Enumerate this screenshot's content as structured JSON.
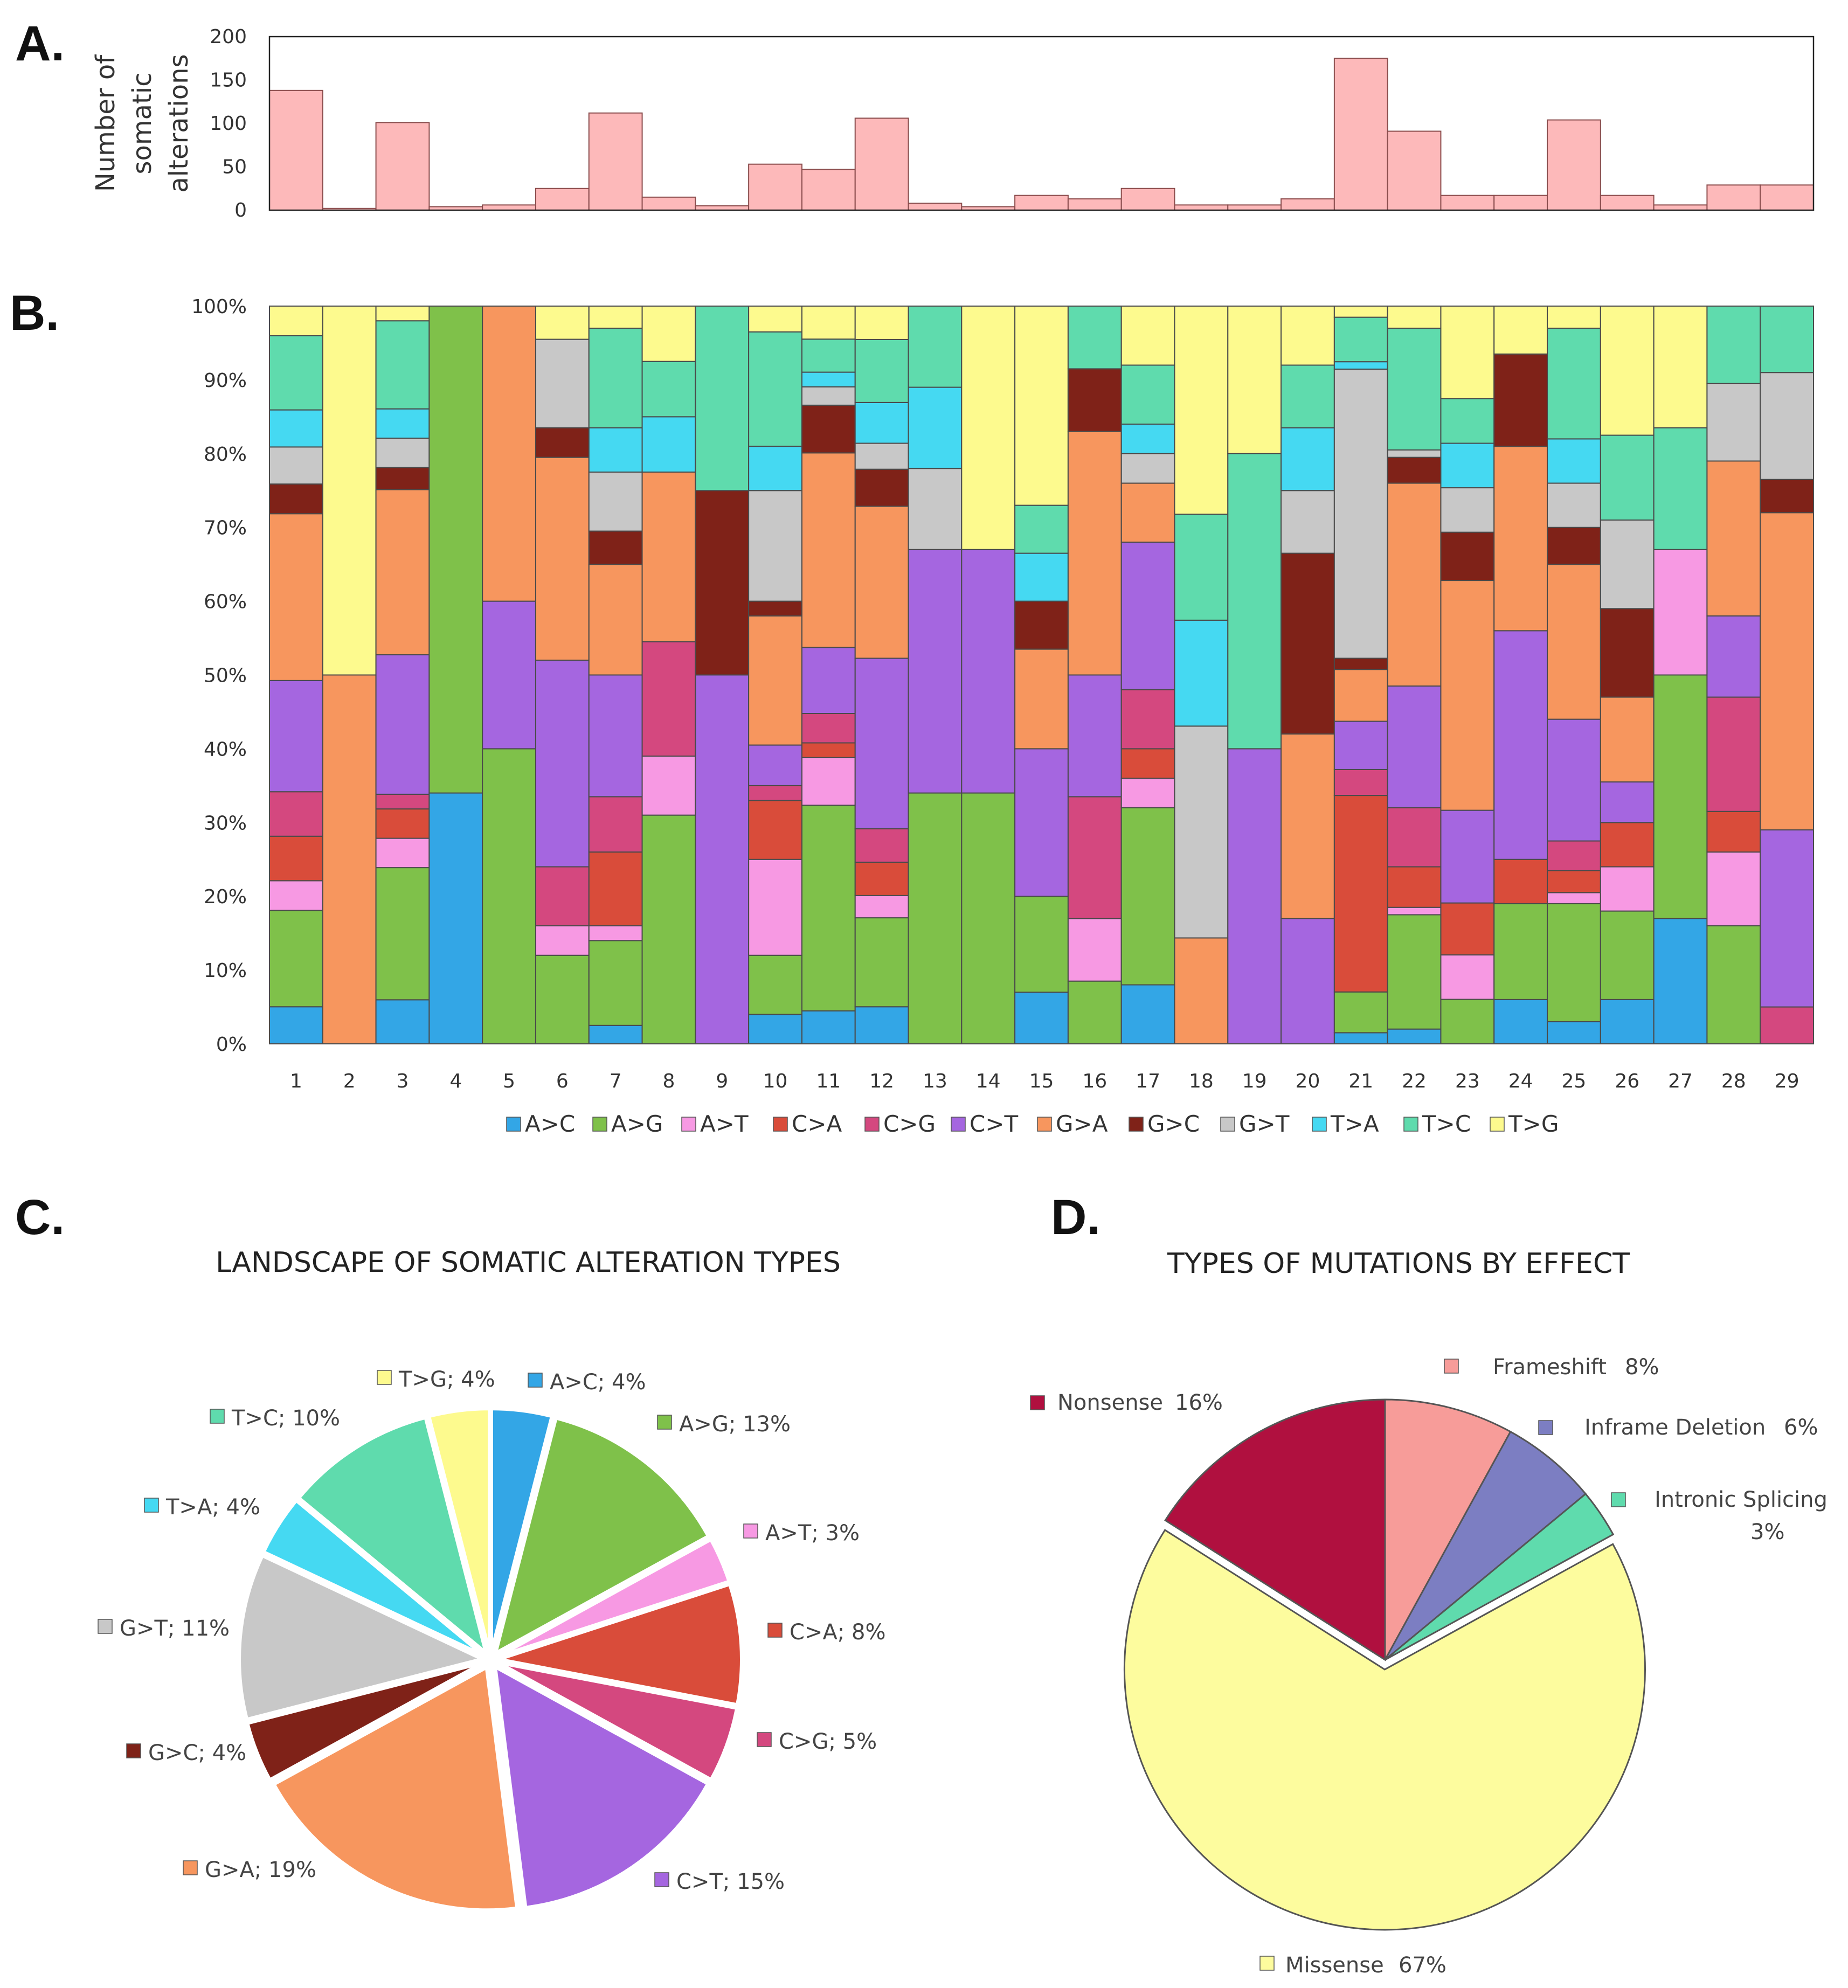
{
  "panels": {
    "a": "A.",
    "b": "B.",
    "c": "C.",
    "d": "D."
  },
  "colors": {
    "A>C": "#33a6e6",
    "A>G": "#7fc14a",
    "A>T": "#f799e3",
    "C>A": "#d94c3a",
    "C>G": "#d4487f",
    "C>T": "#a566e0",
    "G>A": "#f7965e",
    "G>C": "#7f2218",
    "G>T": "#c8c8c8",
    "T>A": "#45d9f2",
    "T>C": "#5fdbad",
    "T>G": "#fdfa8e",
    "bar": "#fdb9ba",
    "Nonsense": "#b0103f",
    "Frameshift": "#f79c99",
    "Inframe Deletion": "#7c7ec2",
    "Intronic Splicing": "#5fdbad",
    "Missense": "#fdfc9e"
  },
  "chart_data": [
    {
      "id": "A",
      "type": "bar",
      "ylabel_lines": [
        "Number of",
        "somatic",
        "alterations"
      ],
      "ylim": [
        0,
        200
      ],
      "yticks": [
        "0",
        "50",
        "100",
        "150",
        "200"
      ],
      "categories": [
        "1",
        "2",
        "3",
        "4",
        "5",
        "6",
        "7",
        "8",
        "9",
        "10",
        "11",
        "12",
        "13",
        "14",
        "15",
        "16",
        "17",
        "18",
        "19",
        "20",
        "21",
        "22",
        "23",
        "24",
        "25",
        "26",
        "27",
        "28",
        "29"
      ],
      "values": [
        138,
        2,
        101,
        4,
        6,
        25,
        112,
        15,
        5,
        53,
        47,
        106,
        8,
        4,
        17,
        13,
        25,
        6,
        6,
        13,
        175,
        91,
        17,
        17,
        104,
        17,
        6,
        29,
        29
      ]
    },
    {
      "id": "B",
      "type": "bar",
      "stacked": true,
      "ylim": [
        0,
        100
      ],
      "yticks": [
        "0%",
        "10%",
        "20%",
        "30%",
        "40%",
        "50%",
        "60%",
        "70%",
        "80%",
        "90%",
        "100%"
      ],
      "categories": [
        "1",
        "2",
        "3",
        "4",
        "5",
        "6",
        "7",
        "8",
        "9",
        "10",
        "11",
        "12",
        "13",
        "14",
        "15",
        "16",
        "17",
        "18",
        "19",
        "20",
        "21",
        "22",
        "23",
        "24",
        "25",
        "26",
        "27",
        "28",
        "29"
      ],
      "legend": [
        "A>C",
        "A>G",
        "A>T",
        "C>A",
        "C>G",
        "C>T",
        "G>A",
        "G>C",
        "G>T",
        "T>A",
        "T>C",
        "T>G"
      ],
      "series": [
        {
          "name": "A>C",
          "values": [
            5,
            0,
            6,
            34,
            0,
            0,
            2.5,
            0,
            0,
            4,
            4.5,
            5,
            0,
            0,
            7,
            0,
            8,
            0,
            0,
            0,
            1.5,
            2,
            0,
            6,
            3,
            6,
            17,
            0,
            0
          ]
        },
        {
          "name": "A>G",
          "values": [
            13,
            0,
            18,
            66,
            40,
            12,
            11.5,
            31,
            0,
            8,
            28,
            12,
            34,
            34,
            13,
            8.5,
            24,
            0,
            0,
            0,
            5.5,
            15.5,
            6,
            13,
            16,
            12,
            33,
            16,
            0
          ]
        },
        {
          "name": "A>T",
          "values": [
            4,
            0,
            4,
            0,
            0,
            4,
            2,
            8,
            0,
            13,
            6.5,
            3,
            0,
            0,
            0,
            8.5,
            4,
            0,
            0,
            0,
            0,
            1,
            6,
            0,
            1.5,
            6,
            17,
            10,
            0
          ]
        },
        {
          "name": "C>A",
          "values": [
            6,
            0,
            4,
            0,
            0,
            0,
            10,
            0,
            0,
            8,
            2,
            4.5,
            0,
            0,
            0,
            0,
            4,
            0,
            0,
            0,
            26.5,
            5.5,
            7,
            6,
            3,
            6,
            0,
            5.5,
            0
          ]
        },
        {
          "name": "C>G",
          "values": [
            6,
            0,
            2,
            0,
            0,
            8,
            7.5,
            15.5,
            0,
            2,
            4,
            4.5,
            0,
            0,
            0,
            16.5,
            8,
            0,
            0,
            0,
            3.5,
            8,
            0,
            0,
            4,
            0,
            0,
            15.5,
            5
          ]
        },
        {
          "name": "C>T",
          "values": [
            15,
            0,
            19,
            0,
            20,
            28,
            16.5,
            0,
            50,
            5.5,
            9,
            23,
            33,
            33,
            20,
            16.5,
            20,
            0,
            40,
            17,
            6.5,
            16.5,
            12.5,
            31,
            16.5,
            5.5,
            0,
            11,
            24
          ]
        },
        {
          "name": "G>A",
          "values": [
            22.5,
            50,
            22.5,
            0,
            40,
            27.5,
            15,
            23,
            0,
            17.5,
            26.5,
            20.5,
            0,
            0,
            13.5,
            33,
            8,
            14.5,
            0,
            25,
            7,
            27.5,
            31,
            25,
            21,
            11.5,
            0,
            21,
            43
          ]
        },
        {
          "name": "G>C",
          "values": [
            4,
            0,
            3,
            0,
            0,
            4,
            4.5,
            0,
            25,
            2,
            6.5,
            5,
            0,
            0,
            6.5,
            8.5,
            0,
            0,
            0,
            24.5,
            1.5,
            3.5,
            6.5,
            12.5,
            5,
            12,
            0,
            0,
            4.5
          ]
        },
        {
          "name": "G>T",
          "values": [
            5,
            0,
            4,
            0,
            0,
            12,
            8,
            0,
            0,
            15,
            2.5,
            3.5,
            11,
            0,
            0,
            0,
            4,
            29,
            0,
            8.5,
            39,
            1,
            6,
            0,
            6,
            12,
            0,
            10.5,
            14.5
          ]
        },
        {
          "name": "T>A",
          "values": [
            5,
            0,
            4,
            0,
            0,
            0,
            6,
            7.5,
            0,
            6,
            2,
            5.5,
            11,
            0,
            6.5,
            0,
            4,
            14.5,
            0,
            8.5,
            1,
            0,
            6,
            0,
            6,
            0,
            0,
            0,
            0
          ]
        },
        {
          "name": "T>C",
          "values": [
            10,
            0,
            12,
            0,
            0,
            0,
            13.5,
            7.5,
            25,
            15.5,
            4.5,
            8.5,
            11,
            0,
            6.5,
            8.5,
            8,
            14.5,
            40,
            8.5,
            6,
            16.5,
            6,
            0,
            15,
            11.5,
            16.5,
            10.5,
            9
          ]
        },
        {
          "name": "T>G",
          "values": [
            4,
            50,
            2,
            0,
            0,
            4.5,
            3,
            7.5,
            0,
            3.5,
            4.5,
            4.5,
            0,
            33,
            27,
            0,
            8,
            28.5,
            20,
            8,
            1.5,
            3,
            12.5,
            6.5,
            3,
            17.5,
            16.5,
            0,
            0
          ]
        }
      ]
    },
    {
      "id": "C",
      "type": "pie",
      "title": "LANDSCAPE OF SOMATIC ALTERATION TYPES",
      "slices": [
        {
          "name": "A>C",
          "value": 4,
          "label": "A>C; 4%"
        },
        {
          "name": "A>G",
          "value": 13,
          "label": "A>G; 13%"
        },
        {
          "name": "A>T",
          "value": 3,
          "label": "A>T; 3%"
        },
        {
          "name": "C>A",
          "value": 8,
          "label": "C>A; 8%"
        },
        {
          "name": "C>G",
          "value": 5,
          "label": "C>G; 5%"
        },
        {
          "name": "C>T",
          "value": 15,
          "label": "C>T; 15%"
        },
        {
          "name": "G>A",
          "value": 19,
          "label": "G>A; 19%"
        },
        {
          "name": "G>C",
          "value": 4,
          "label": "G>C; 4%"
        },
        {
          "name": "G>T",
          "value": 11,
          "label": "G>T; 11%"
        },
        {
          "name": "T>A",
          "value": 4,
          "label": "T>A; 4%"
        },
        {
          "name": "T>C",
          "value": 10,
          "label": "T>C; 10%"
        },
        {
          "name": "T>G",
          "value": 4,
          "label": "T>G; 4%"
        }
      ]
    },
    {
      "id": "D",
      "type": "pie",
      "title": "TYPES OF MUTATIONS BY EFFECT",
      "slices": [
        {
          "name": "Frameshift",
          "value": 8,
          "label_name": "Frameshift",
          "label_pct": "8%"
        },
        {
          "name": "Inframe Deletion",
          "value": 6,
          "label_name": "Inframe Deletion",
          "label_pct": "6%"
        },
        {
          "name": "Intronic Splicing",
          "value": 3,
          "label_name": "Intronic Splicing",
          "label_pct": "3%"
        },
        {
          "name": "Missense",
          "value": 67,
          "label_name": "Missense",
          "label_pct": "67%"
        },
        {
          "name": "Nonsense",
          "value": 16,
          "label_name": "Nonsense",
          "label_pct": "16%"
        }
      ]
    }
  ]
}
